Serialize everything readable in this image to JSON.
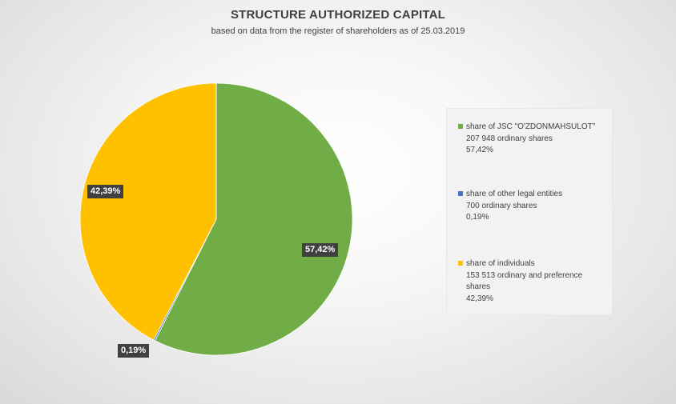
{
  "chart_data": {
    "type": "pie",
    "title": "STRUCTURE AUTHORIZED CAPITAL",
    "subtitle": "based on data from the register of shareholders as of 25.03.2019",
    "slices": [
      {
        "name": "share of JSC \"O'ZDONMAHSULOT\"",
        "detail": [
          "207 948 ordinary shares"
        ],
        "percent_label": "57,42%",
        "value": 57.42,
        "color": "#70ad47"
      },
      {
        "name": "share of other legal entities",
        "detail": [
          "700 ordinary shares"
        ],
        "percent_label": "0,19%",
        "value": 0.19,
        "color": "#4472c4"
      },
      {
        "name": "share of individuals",
        "detail": [
          "153 513 ordinary and preference",
          "shares"
        ],
        "percent_label": "42,39%",
        "value": 42.39,
        "color": "#ffc000"
      }
    ],
    "legend_position": "right"
  }
}
